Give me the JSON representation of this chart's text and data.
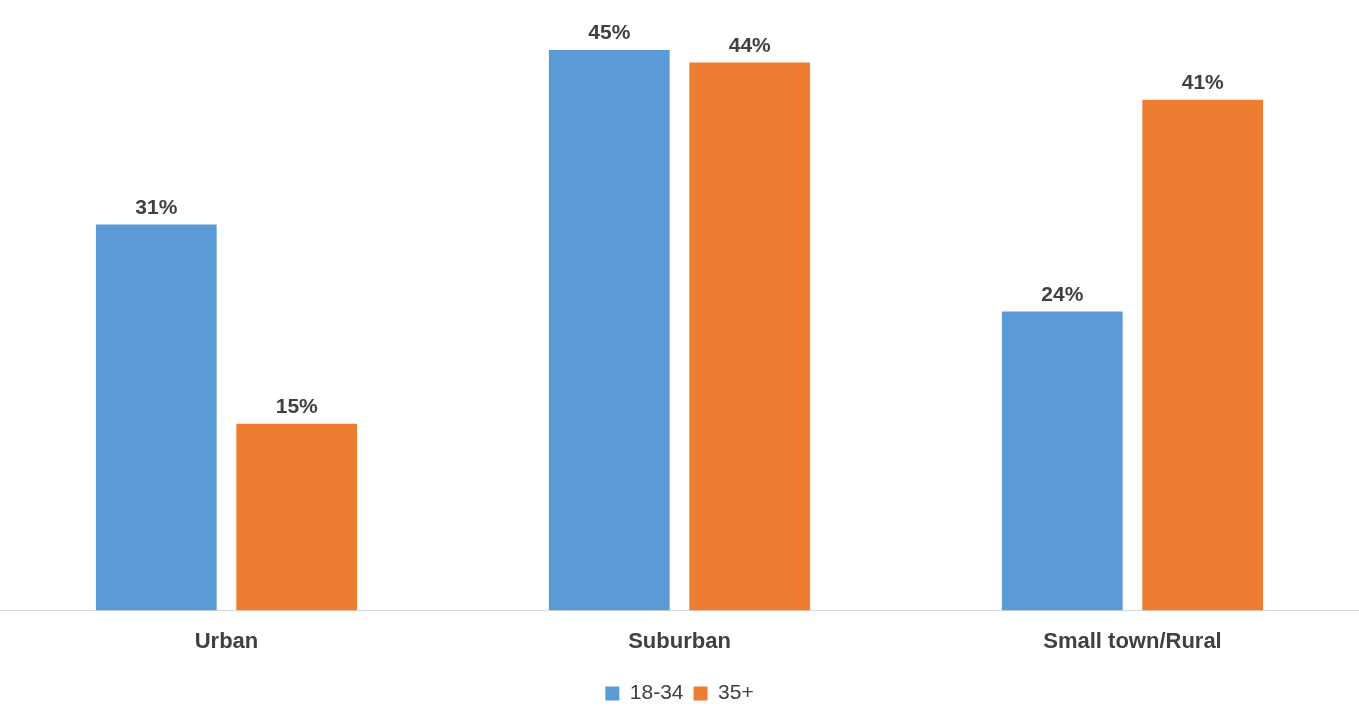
{
  "chart_data": {
    "type": "bar",
    "categories": [
      "Urban",
      "Suburban",
      "Small town/Rural"
    ],
    "series": [
      {
        "name": "18-34",
        "color": "#5b9bd5",
        "values": [
          31,
          45,
          24
        ],
        "value_labels": [
          "31%",
          "45%",
          "24%"
        ]
      },
      {
        "name": "35+",
        "color": "#ed7d31",
        "values": [
          15,
          44,
          41
        ],
        "value_labels": [
          "15%",
          "44%",
          "41%"
        ]
      }
    ],
    "legend": "bottom",
    "grid": false
  }
}
